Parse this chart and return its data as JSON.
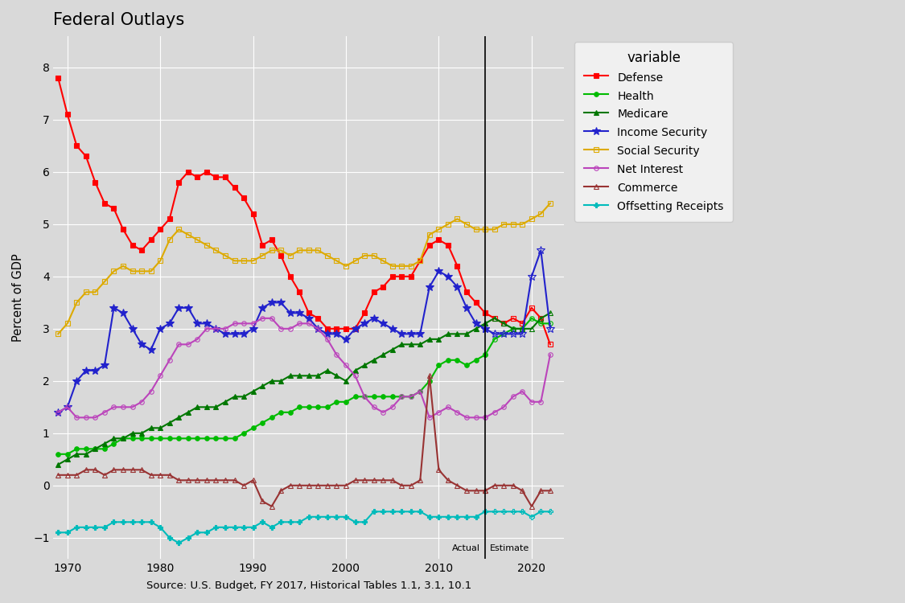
{
  "title": "Federal Outlays",
  "xlabel": "Source: U.S. Budget, FY 2017, Historical Tables 1.1, 3.1, 10.1",
  "ylabel": "Percent of GDP",
  "ylim": [
    -1.4,
    8.6
  ],
  "xlim": [
    1968.5,
    2023.5
  ],
  "vertical_line_x": 2015,
  "actual_label": "Actual",
  "estimate_label": "Estimate",
  "plot_bg_color": "#d9d9d9",
  "fig_bg_color": "#d9d9d9",
  "legend_bg_color": "#f0f0f0",
  "grid_color": "#ffffff",
  "series": {
    "Defense": {
      "color": "#ff0000",
      "marker": "s",
      "ms": 4,
      "lw": 1.5,
      "fill": true,
      "years": [
        1969,
        1970,
        1971,
        1972,
        1973,
        1974,
        1975,
        1976,
        1977,
        1978,
        1979,
        1980,
        1981,
        1982,
        1983,
        1984,
        1985,
        1986,
        1987,
        1988,
        1989,
        1990,
        1991,
        1992,
        1993,
        1994,
        1995,
        1996,
        1997,
        1998,
        1999,
        2000,
        2001,
        2002,
        2003,
        2004,
        2005,
        2006,
        2007,
        2008,
        2009,
        2010,
        2011,
        2012,
        2013,
        2014,
        2015,
        2016,
        2017,
        2018,
        2019,
        2020,
        2021,
        2022
      ],
      "values": [
        7.8,
        7.1,
        6.5,
        6.3,
        5.8,
        5.4,
        5.3,
        4.9,
        4.6,
        4.5,
        4.7,
        4.9,
        5.1,
        5.8,
        6.0,
        5.9,
        6.0,
        5.9,
        5.9,
        5.7,
        5.5,
        5.2,
        4.6,
        4.7,
        4.4,
        4.0,
        3.7,
        3.3,
        3.2,
        3.0,
        3.0,
        3.0,
        3.0,
        3.3,
        3.7,
        3.8,
        4.0,
        4.0,
        4.0,
        4.3,
        4.6,
        4.7,
        4.6,
        4.2,
        3.7,
        3.5,
        3.3,
        3.2,
        3.1,
        3.2,
        3.1,
        3.4,
        3.2,
        2.7
      ]
    },
    "Health": {
      "color": "#00bb00",
      "marker": "o",
      "ms": 4,
      "lw": 1.5,
      "fill": true,
      "years": [
        1969,
        1970,
        1971,
        1972,
        1973,
        1974,
        1975,
        1976,
        1977,
        1978,
        1979,
        1980,
        1981,
        1982,
        1983,
        1984,
        1985,
        1986,
        1987,
        1988,
        1989,
        1990,
        1991,
        1992,
        1993,
        1994,
        1995,
        1996,
        1997,
        1998,
        1999,
        2000,
        2001,
        2002,
        2003,
        2004,
        2005,
        2006,
        2007,
        2008,
        2009,
        2010,
        2011,
        2012,
        2013,
        2014,
        2015,
        2016,
        2017,
        2018,
        2019,
        2020,
        2021,
        2022
      ],
      "values": [
        0.6,
        0.6,
        0.7,
        0.7,
        0.7,
        0.7,
        0.8,
        0.9,
        0.9,
        0.9,
        0.9,
        0.9,
        0.9,
        0.9,
        0.9,
        0.9,
        0.9,
        0.9,
        0.9,
        0.9,
        1.0,
        1.1,
        1.2,
        1.3,
        1.4,
        1.4,
        1.5,
        1.5,
        1.5,
        1.5,
        1.6,
        1.6,
        1.7,
        1.7,
        1.7,
        1.7,
        1.7,
        1.7,
        1.7,
        1.8,
        2.0,
        2.3,
        2.4,
        2.4,
        2.3,
        2.4,
        2.5,
        2.8,
        2.9,
        3.0,
        3.0,
        3.2,
        3.1,
        3.1
      ]
    },
    "Medicare": {
      "color": "#007700",
      "marker": "^",
      "ms": 4,
      "lw": 1.5,
      "fill": true,
      "years": [
        1969,
        1970,
        1971,
        1972,
        1973,
        1974,
        1975,
        1976,
        1977,
        1978,
        1979,
        1980,
        1981,
        1982,
        1983,
        1984,
        1985,
        1986,
        1987,
        1988,
        1989,
        1990,
        1991,
        1992,
        1993,
        1994,
        1995,
        1996,
        1997,
        1998,
        1999,
        2000,
        2001,
        2002,
        2003,
        2004,
        2005,
        2006,
        2007,
        2008,
        2009,
        2010,
        2011,
        2012,
        2013,
        2014,
        2015,
        2016,
        2017,
        2018,
        2019,
        2020,
        2021,
        2022
      ],
      "values": [
        0.4,
        0.5,
        0.6,
        0.6,
        0.7,
        0.8,
        0.9,
        0.9,
        1.0,
        1.0,
        1.1,
        1.1,
        1.2,
        1.3,
        1.4,
        1.5,
        1.5,
        1.5,
        1.6,
        1.7,
        1.7,
        1.8,
        1.9,
        2.0,
        2.0,
        2.1,
        2.1,
        2.1,
        2.1,
        2.2,
        2.1,
        2.0,
        2.2,
        2.3,
        2.4,
        2.5,
        2.6,
        2.7,
        2.7,
        2.7,
        2.8,
        2.8,
        2.9,
        2.9,
        2.9,
        3.0,
        3.1,
        3.2,
        3.1,
        3.0,
        3.0,
        3.0,
        3.2,
        3.3
      ]
    },
    "Income Security": {
      "color": "#2222cc",
      "marker": "*",
      "ms": 7,
      "lw": 1.5,
      "fill": true,
      "years": [
        1969,
        1970,
        1971,
        1972,
        1973,
        1974,
        1975,
        1976,
        1977,
        1978,
        1979,
        1980,
        1981,
        1982,
        1983,
        1984,
        1985,
        1986,
        1987,
        1988,
        1989,
        1990,
        1991,
        1992,
        1993,
        1994,
        1995,
        1996,
        1997,
        1998,
        1999,
        2000,
        2001,
        2002,
        2003,
        2004,
        2005,
        2006,
        2007,
        2008,
        2009,
        2010,
        2011,
        2012,
        2013,
        2014,
        2015,
        2016,
        2017,
        2018,
        2019,
        2020,
        2021,
        2022
      ],
      "values": [
        1.4,
        1.5,
        2.0,
        2.2,
        2.2,
        2.3,
        3.4,
        3.3,
        3.0,
        2.7,
        2.6,
        3.0,
        3.1,
        3.4,
        3.4,
        3.1,
        3.1,
        3.0,
        2.9,
        2.9,
        2.9,
        3.0,
        3.4,
        3.5,
        3.5,
        3.3,
        3.3,
        3.2,
        3.0,
        2.9,
        2.9,
        2.8,
        3.0,
        3.1,
        3.2,
        3.1,
        3.0,
        2.9,
        2.9,
        2.9,
        3.8,
        4.1,
        4.0,
        3.8,
        3.4,
        3.1,
        3.0,
        2.9,
        2.9,
        2.9,
        2.9,
        4.0,
        4.5,
        3.0
      ]
    },
    "Social Security": {
      "color": "#ddaa00",
      "marker": "s",
      "ms": 4,
      "lw": 1.5,
      "fill": false,
      "years": [
        1969,
        1970,
        1971,
        1972,
        1973,
        1974,
        1975,
        1976,
        1977,
        1978,
        1979,
        1980,
        1981,
        1982,
        1983,
        1984,
        1985,
        1986,
        1987,
        1988,
        1989,
        1990,
        1991,
        1992,
        1993,
        1994,
        1995,
        1996,
        1997,
        1998,
        1999,
        2000,
        2001,
        2002,
        2003,
        2004,
        2005,
        2006,
        2007,
        2008,
        2009,
        2010,
        2011,
        2012,
        2013,
        2014,
        2015,
        2016,
        2017,
        2018,
        2019,
        2020,
        2021,
        2022
      ],
      "values": [
        2.9,
        3.1,
        3.5,
        3.7,
        3.7,
        3.9,
        4.1,
        4.2,
        4.1,
        4.1,
        4.1,
        4.3,
        4.7,
        4.9,
        4.8,
        4.7,
        4.6,
        4.5,
        4.4,
        4.3,
        4.3,
        4.3,
        4.4,
        4.5,
        4.5,
        4.4,
        4.5,
        4.5,
        4.5,
        4.4,
        4.3,
        4.2,
        4.3,
        4.4,
        4.4,
        4.3,
        4.2,
        4.2,
        4.2,
        4.3,
        4.8,
        4.9,
        5.0,
        5.1,
        5.0,
        4.9,
        4.9,
        4.9,
        5.0,
        5.0,
        5.0,
        5.1,
        5.2,
        5.4
      ]
    },
    "Net Interest": {
      "color": "#bb44bb",
      "marker": "o",
      "ms": 4,
      "lw": 1.5,
      "fill": false,
      "years": [
        1969,
        1970,
        1971,
        1972,
        1973,
        1974,
        1975,
        1976,
        1977,
        1978,
        1979,
        1980,
        1981,
        1982,
        1983,
        1984,
        1985,
        1986,
        1987,
        1988,
        1989,
        1990,
        1991,
        1992,
        1993,
        1994,
        1995,
        1996,
        1997,
        1998,
        1999,
        2000,
        2001,
        2002,
        2003,
        2004,
        2005,
        2006,
        2007,
        2008,
        2009,
        2010,
        2011,
        2012,
        2013,
        2014,
        2015,
        2016,
        2017,
        2018,
        2019,
        2020,
        2021,
        2022
      ],
      "values": [
        1.4,
        1.5,
        1.3,
        1.3,
        1.3,
        1.4,
        1.5,
        1.5,
        1.5,
        1.6,
        1.8,
        2.1,
        2.4,
        2.7,
        2.7,
        2.8,
        3.0,
        3.0,
        3.0,
        3.1,
        3.1,
        3.1,
        3.2,
        3.2,
        3.0,
        3.0,
        3.1,
        3.1,
        3.0,
        2.8,
        2.5,
        2.3,
        2.1,
        1.7,
        1.5,
        1.4,
        1.5,
        1.7,
        1.7,
        1.8,
        1.3,
        1.4,
        1.5,
        1.4,
        1.3,
        1.3,
        1.3,
        1.4,
        1.5,
        1.7,
        1.8,
        1.6,
        1.6,
        2.5
      ]
    },
    "Commerce": {
      "color": "#993333",
      "marker": "^",
      "ms": 4,
      "lw": 1.5,
      "fill": false,
      "years": [
        1969,
        1970,
        1971,
        1972,
        1973,
        1974,
        1975,
        1976,
        1977,
        1978,
        1979,
        1980,
        1981,
        1982,
        1983,
        1984,
        1985,
        1986,
        1987,
        1988,
        1989,
        1990,
        1991,
        1992,
        1993,
        1994,
        1995,
        1996,
        1997,
        1998,
        1999,
        2000,
        2001,
        2002,
        2003,
        2004,
        2005,
        2006,
        2007,
        2008,
        2009,
        2010,
        2011,
        2012,
        2013,
        2014,
        2015,
        2016,
        2017,
        2018,
        2019,
        2020,
        2021,
        2022
      ],
      "values": [
        0.2,
        0.2,
        0.2,
        0.3,
        0.3,
        0.2,
        0.3,
        0.3,
        0.3,
        0.3,
        0.2,
        0.2,
        0.2,
        0.1,
        0.1,
        0.1,
        0.1,
        0.1,
        0.1,
        0.1,
        0.0,
        0.1,
        -0.3,
        -0.4,
        -0.1,
        0.0,
        0.0,
        0.0,
        0.0,
        0.0,
        0.0,
        0.0,
        0.1,
        0.1,
        0.1,
        0.1,
        0.1,
        0.0,
        0.0,
        0.1,
        2.1,
        0.3,
        0.1,
        0.0,
        -0.1,
        -0.1,
        -0.1,
        -0.0,
        0.0,
        0.0,
        -0.1,
        -0.4,
        -0.1,
        -0.1
      ]
    },
    "Offsetting Receipts": {
      "color": "#00bbbb",
      "marker": "P",
      "ms": 4,
      "lw": 1.5,
      "fill": true,
      "years": [
        1969,
        1970,
        1971,
        1972,
        1973,
        1974,
        1975,
        1976,
        1977,
        1978,
        1979,
        1980,
        1981,
        1982,
        1983,
        1984,
        1985,
        1986,
        1987,
        1988,
        1989,
        1990,
        1991,
        1992,
        1993,
        1994,
        1995,
        1996,
        1997,
        1998,
        1999,
        2000,
        2001,
        2002,
        2003,
        2004,
        2005,
        2006,
        2007,
        2008,
        2009,
        2010,
        2011,
        2012,
        2013,
        2014,
        2015,
        2016,
        2017,
        2018,
        2019,
        2020,
        2021,
        2022
      ],
      "values": [
        -0.9,
        -0.9,
        -0.8,
        -0.8,
        -0.8,
        -0.8,
        -0.7,
        -0.7,
        -0.7,
        -0.7,
        -0.7,
        -0.8,
        -1.0,
        -1.1,
        -1.0,
        -0.9,
        -0.9,
        -0.8,
        -0.8,
        -0.8,
        -0.8,
        -0.8,
        -0.7,
        -0.8,
        -0.7,
        -0.7,
        -0.7,
        -0.6,
        -0.6,
        -0.6,
        -0.6,
        -0.6,
        -0.7,
        -0.7,
        -0.5,
        -0.5,
        -0.5,
        -0.5,
        -0.5,
        -0.5,
        -0.6,
        -0.6,
        -0.6,
        -0.6,
        -0.6,
        -0.6,
        -0.5,
        -0.5,
        -0.5,
        -0.5,
        -0.5,
        -0.6,
        -0.5,
        -0.5
      ]
    }
  }
}
